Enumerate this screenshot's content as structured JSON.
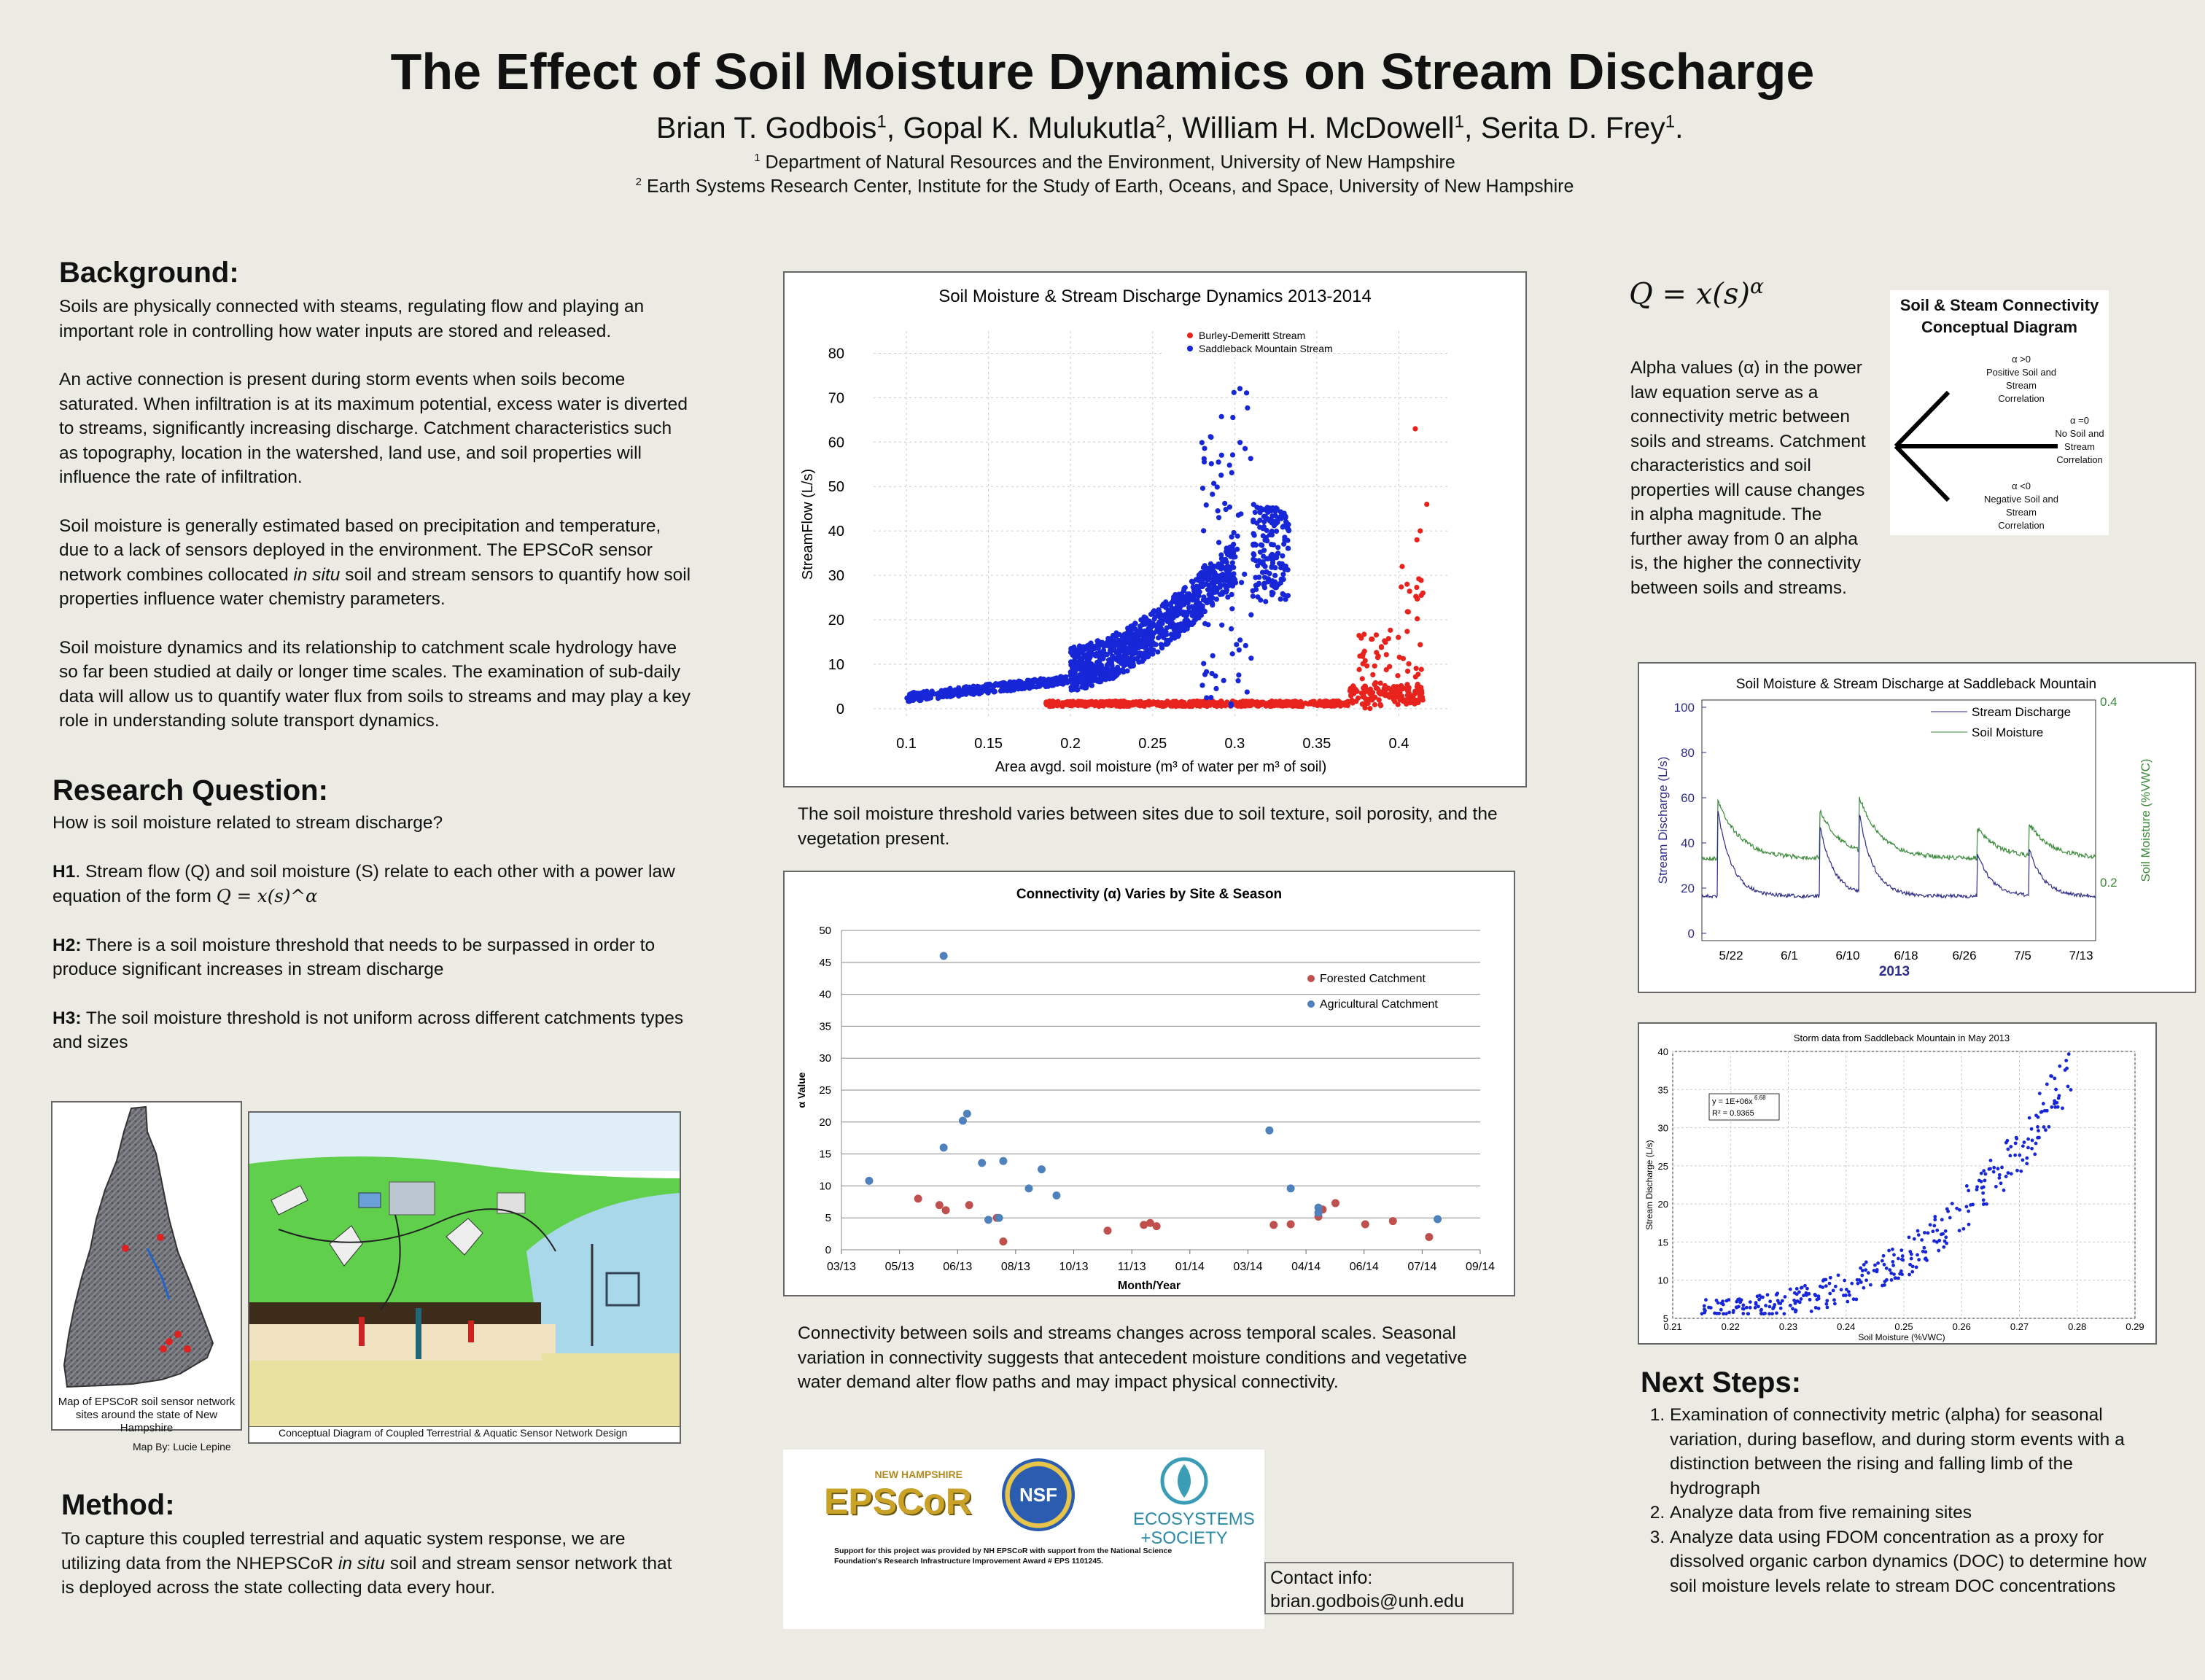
{
  "title": "The Effect of Soil Moisture Dynamics on Stream Discharge",
  "authors": [
    {
      "name": "Brian T. Godbois",
      "sup": "1",
      "sep": ", "
    },
    {
      "name": "Gopal K. Mulukutla",
      "sup": "2",
      "sep": ", "
    },
    {
      "name": "William H. McDowell",
      "sup": "1",
      "sep": ", "
    },
    {
      "name": "Serita D. Frey",
      "sup": "1",
      "sep": "."
    }
  ],
  "affiliations": [
    {
      "sup": "1",
      "text": "Department of Natural Resources and the Environment, University of New Hampshire"
    },
    {
      "sup": "2",
      "text": "Earth Systems Research Center, Institute for the Study of Earth, Oceans, and Space, University of New Hampshire"
    }
  ],
  "background": {
    "heading": "Background:",
    "p1": "Soils are physically connected with steams, regulating flow and playing an important role in controlling how water inputs are stored and released.",
    "p2": "An active connection is present during storm events when soils become saturated. When infiltration is at its maximum potential, excess water is diverted to streams, significantly increasing discharge. Catchment characteristics such as topography, location in the watershed, land use, and soil properties will influence the rate of infiltration.",
    "p3_a": "Soil moisture is generally estimated based on precipitation and temperature, due to a lack of sensors deployed in the environment. The EPSCoR sensor network combines collocated ",
    "p3_em": "in situ",
    "p3_b": " soil and stream sensors to quantify how soil properties influence water chemistry parameters.",
    "p4": "Soil moisture dynamics and its relationship to catchment scale hydrology have so far been studied at daily or longer time scales. The examination of sub-daily data will allow us to quantify water flux from soils to streams and may play a key role in understanding solute transport dynamics."
  },
  "research": {
    "heading": "Research Question:",
    "question": "How is soil moisture related to stream discharge?",
    "h1_label": "H1",
    "h1_text": ". Stream flow (Q) and soil moisture (S) relate to each other with a power law equation of the form ",
    "h2_label": "H2:",
    "h2_text": " There is a soil moisture threshold that needs to be surpassed in order to produce significant increases in stream discharge",
    "h3_label": "H3:",
    "h3_text": " The soil moisture threshold is not uniform across different catchments types and sizes"
  },
  "equation": "Q = x(s)^α",
  "map": {
    "caption": "Map of EPSCoR soil sensor network sites around the state of New Hampshire",
    "credit": "Map By: Lucie Lepine"
  },
  "diagram": {
    "caption": "Conceptual Diagram of Coupled Terrestrial & Aquatic Sensor Network Design"
  },
  "method": {
    "heading": "Method:",
    "text_a": "To capture this coupled terrestrial and aquatic system response, we are utilizing data from the NHEPSCoR ",
    "text_em": "in situ",
    "text_b": " soil and stream sensor network that is deployed across the state collecting data every hour."
  },
  "chart1_caption": "The soil moisture threshold varies between sites due to soil texture, soil porosity, and the vegetation present.",
  "chart2_caption": "Connectivity between soils and streams changes across temporal scales. Seasonal variation in connectivity suggests that antecedent moisture conditions and vegetative water demand alter flow paths and may impact physical connectivity.",
  "logos": {
    "epscor_top": "NEW HAMPSHIRE",
    "epscor_main": "EPSCoR",
    "nsf": "NSF",
    "eco_line1": "ECOSYSTEMS",
    "eco_line2": "+SOCIETY",
    "support": "Support for this project was provided by NH EPSCoR with support from the National Science Foundation's Research Infrastructure Improvement Award # EPS 1101245."
  },
  "contact": {
    "label": "Contact info:",
    "email": "brian.godbois@unh.edu"
  },
  "alpha_text": "Alpha values (α) in the power law equation serve as a connectivity metric between soils and streams. Catchment characteristics and soil properties will cause changes in alpha magnitude. The further away from  0 an alpha is, the higher the connectivity between soils and streams.",
  "conceptual": {
    "title": "Soil & Steam Connectivity Conceptual Diagram",
    "pos": [
      "α >0",
      "Positive Soil and",
      "Stream",
      "Correlation"
    ],
    "zero": [
      "α =0",
      "No Soil and",
      "Stream",
      "Correlation"
    ],
    "neg": [
      "α <0",
      "Negative Soil and",
      "Stream",
      "Correlation"
    ]
  },
  "next_steps": {
    "heading": "Next Steps:",
    "items": [
      "Examination of connectivity metric (alpha) for seasonal variation, during baseflow, and during storm events  with a distinction between the rising and falling limb of the hydrograph",
      "Analyze data from five remaining sites",
      "Analyze data using FDOM concentration as a proxy for dissolved organic carbon dynamics (DOC) to determine how soil moisture levels relate to stream DOC concentrations"
    ]
  },
  "colors": {
    "red": "#e8231d",
    "blue": "#1726d6",
    "forest": "#c0504d",
    "agri": "#4f81bd",
    "green": "#3a8a3a",
    "navy": "#2d2d8a"
  },
  "chart_data": [
    {
      "id": "scatter1",
      "type": "scatter",
      "title": "Soil Moisture & Stream Discharge Dynamics 2013-2014",
      "xlabel": "Area avgd. soil moisture (m³ of water per m³ of soil)",
      "ylabel": "StreamFlow (L/s)",
      "xlim": [
        0.08,
        0.43
      ],
      "ylim": [
        -2,
        85
      ],
      "xticks": [
        "0.1",
        "0.15",
        "0.2",
        "0.25",
        "0.3",
        "0.35",
        "0.4"
      ],
      "yticks": [
        "0",
        "10",
        "20",
        "30",
        "40",
        "50",
        "60",
        "70",
        "80"
      ],
      "legend": [
        "Burley-Demeritt Stream",
        "Saddleback Mountain Stream"
      ]
    },
    {
      "id": "connectivity",
      "type": "scatter",
      "title": "Connectivity (α) Varies by Site & Season",
      "xlabel": "Month/Year",
      "ylabel": "α Value",
      "xticks": [
        "03/13",
        "05/13",
        "06/13",
        "08/13",
        "10/13",
        "11/13",
        "01/14",
        "03/14",
        "04/14",
        "06/14",
        "07/14",
        "09/14"
      ],
      "yticks": [
        "0",
        "5",
        "10",
        "15",
        "20",
        "25",
        "30",
        "35",
        "40",
        "45",
        "50"
      ],
      "ylim": [
        0,
        50
      ],
      "legend": [
        "Forested Catchment",
        "Agricultural Catchment"
      ],
      "series": [
        {
          "name": "Forested Catchment",
          "points": [
            [
              1.8,
              8
            ],
            [
              2.3,
              7
            ],
            [
              2.45,
              6.2
            ],
            [
              3.0,
              7
            ],
            [
              3.65,
              5
            ],
            [
              3.8,
              1.3
            ],
            [
              6.25,
              3
            ],
            [
              7.1,
              3.9
            ],
            [
              7.25,
              4.2
            ],
            [
              7.4,
              3.7
            ],
            [
              10.15,
              3.9
            ],
            [
              10.55,
              4.0
            ],
            [
              11.2,
              5.2
            ],
            [
              11.6,
              7.3
            ],
            [
              11.3,
              6.3
            ],
            [
              12.3,
              4.0
            ],
            [
              12.95,
              4.5
            ],
            [
              13.8,
              2
            ]
          ]
        },
        {
          "name": "Agricultural Catchment",
          "points": [
            [
              0.65,
              10.8
            ],
            [
              2.4,
              46
            ],
            [
              2.4,
              16
            ],
            [
              2.85,
              20.2
            ],
            [
              2.95,
              21.3
            ],
            [
              3.3,
              13.6
            ],
            [
              3.45,
              4.7
            ],
            [
              3.8,
              13.9
            ],
            [
              3.7,
              5
            ],
            [
              4.4,
              9.6
            ],
            [
              4.7,
              12.6
            ],
            [
              5.05,
              8.5
            ],
            [
              10.05,
              18.7
            ],
            [
              10.55,
              9.6
            ],
            [
              11.2,
              6.6
            ],
            [
              11.2,
              5.8
            ],
            [
              14.0,
              4.8
            ]
          ]
        }
      ]
    },
    {
      "id": "timeseries",
      "type": "line",
      "title": "Soil Moisture & Stream Discharge at Saddleback Mountain",
      "xlabel": "2013",
      "ylabel": "Stream Discharge (L/s)",
      "y2label": "Soil Moisture (%VWC)",
      "xticks": [
        "5/22",
        "6/1",
        "6/10",
        "6/18",
        "6/26",
        "7/5",
        "7/13"
      ],
      "yticks": [
        "0",
        "20",
        "40",
        "60",
        "80",
        "100"
      ],
      "y2ticks": [
        "0.2",
        "0.4"
      ],
      "legend": [
        "Stream Discharge",
        "Soil Moisture"
      ]
    },
    {
      "id": "storm",
      "type": "scatter",
      "title": "Storm data from Saddleback Mountain in May 2013",
      "xlabel": "Soil Moisture (%VWC)",
      "ylabel": "Stream Discharge (L/s)",
      "xticks": [
        "0.21",
        "0.22",
        "0.23",
        "0.24",
        "0.25",
        "0.26",
        "0.27",
        "0.28",
        "0.29"
      ],
      "yticks": [
        "5",
        "10",
        "15",
        "20",
        "25",
        "30",
        "35",
        "40"
      ],
      "xlim": [
        0.21,
        0.29
      ],
      "ylim": [
        5,
        40
      ],
      "fit_equation": "y = 1E+06x",
      "fit_exponent": "6.68",
      "r2": "R² = 0.9365"
    }
  ]
}
